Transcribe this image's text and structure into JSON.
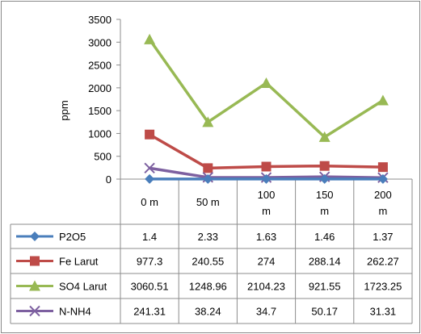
{
  "chart_data": {
    "type": "line",
    "ylabel": "ppm",
    "xlabel": "",
    "title": "",
    "ylim": [
      0,
      3500
    ],
    "yticks": [
      0,
      500,
      1000,
      1500,
      2000,
      2500,
      3000,
      3500
    ],
    "categories": [
      "0 m",
      "50 m",
      "100 m",
      "150 m",
      "200 m"
    ],
    "series": [
      {
        "name": "P2O5",
        "color": "#4a7ebb",
        "marker": "diamond",
        "values": [
          1.4,
          2.33,
          1.63,
          1.46,
          1.37
        ],
        "labels": [
          "1.4",
          "2.33",
          "1.63",
          "1.46",
          "1.37"
        ]
      },
      {
        "name": "Fe Larut",
        "color": "#be4b48",
        "marker": "square",
        "values": [
          977.3,
          240.55,
          274,
          288.14,
          262.27
        ],
        "labels": [
          "977.3",
          "240.55",
          "274",
          "288.14",
          "262.27"
        ]
      },
      {
        "name": "SO4 Larut",
        "color": "#98b954",
        "marker": "triangle",
        "values": [
          3060.51,
          1248.96,
          2104.23,
          921.55,
          1723.25
        ],
        "labels": [
          "3060.51",
          "1248.96",
          "2104.23",
          "921.55",
          "1723.25"
        ]
      },
      {
        "name": "N-NH4",
        "color": "#7d60a0",
        "marker": "x",
        "values": [
          241.31,
          38.24,
          34.7,
          50.17,
          31.31
        ],
        "labels": [
          "241.31",
          "38.24",
          "34.7",
          "50.17",
          "31.31"
        ]
      }
    ],
    "grid": false,
    "legend": "data-table"
  }
}
